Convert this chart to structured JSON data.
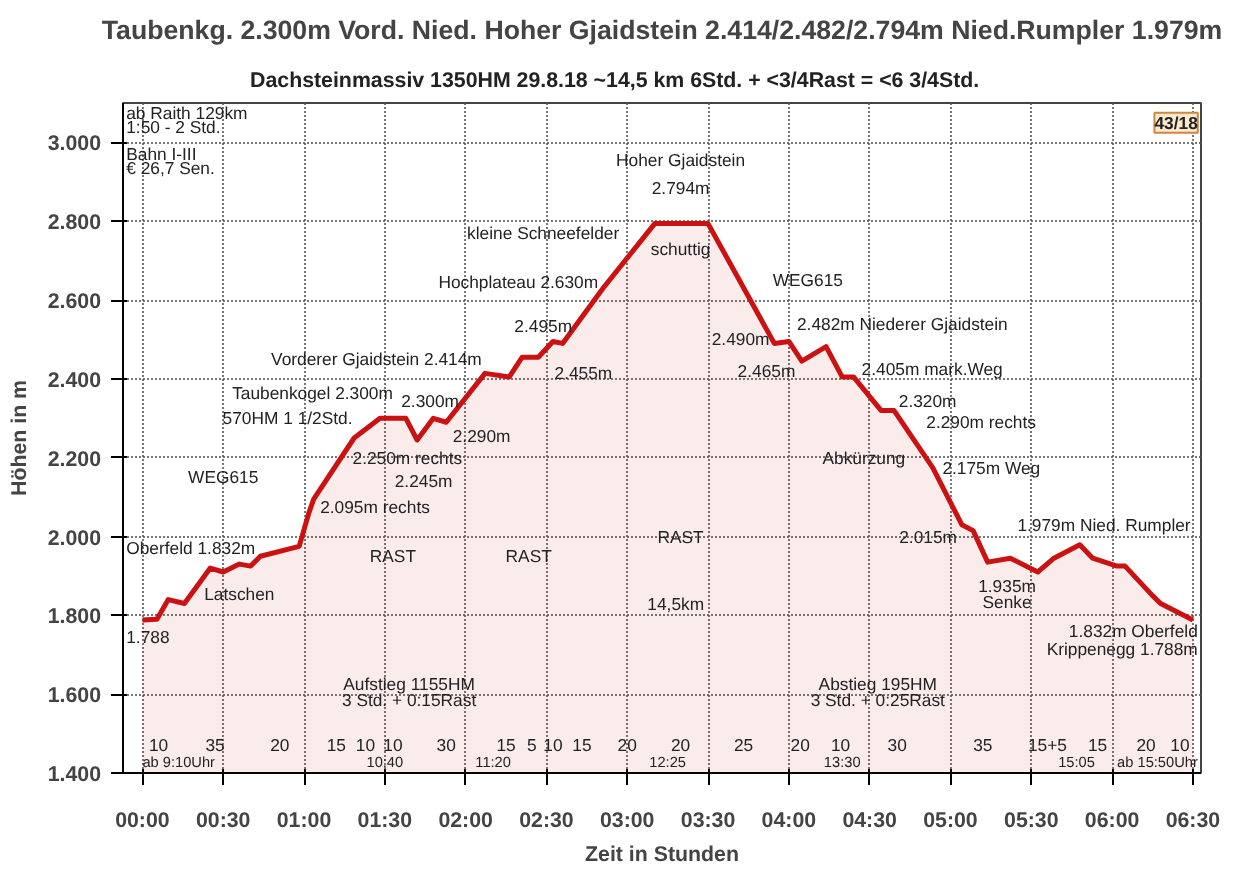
{
  "chart_data": {
    "type": "area",
    "title": "Taubenkg. 2.300m Vord. Nied. Hoher Gjaidstein 2.414/2.482/2.794m Nied.Rumpler 1.979m",
    "subtitle": "Dachsteinmassiv     1350HM     29.8.18     ~14,5 km     6Std. + <3/4Rast = <6 3/4Std.",
    "xlabel": "Zeit in Stunden",
    "ylabel": "Höhen in m",
    "x": [
      0.0,
      0.09,
      0.16,
      0.26,
      0.42,
      0.5,
      0.6,
      0.67,
      0.73,
      0.97,
      1.03,
      1.06,
      1.31,
      1.47,
      1.63,
      1.7,
      1.8,
      1.88,
      2.12,
      2.27,
      2.35,
      2.45,
      2.54,
      2.6,
      2.85,
      3.17,
      3.5,
      3.91,
      4.0,
      4.08,
      4.23,
      4.33,
      4.4,
      4.57,
      4.65,
      4.89,
      5.07,
      5.14,
      5.23,
      5.37,
      5.54,
      5.64,
      5.8,
      5.88,
      6.03,
      6.08,
      6.25,
      6.3,
      6.5
    ],
    "series": [
      {
        "color": "#cc1111",
        "values": [
          1788,
          1790,
          1840,
          1830,
          1920,
          1910,
          1930,
          1925,
          1950,
          1975,
          2060,
          2095,
          2250,
          2300,
          2300,
          2245,
          2300,
          2290,
          2414,
          2405,
          2455,
          2455,
          2495,
          2490,
          2630,
          2794,
          2794,
          2490,
          2495,
          2445,
          2482,
          2405,
          2405,
          2320,
          2320,
          2175,
          2030,
          2015,
          1935,
          1945,
          1910,
          1945,
          1979,
          1945,
          1925,
          1925,
          1850,
          1830,
          1788
        ]
      }
    ],
    "xlim": [
      -0.12,
      6.55
    ],
    "ylim": [
      1400,
      3100
    ],
    "xticks": [
      {
        "value": 0,
        "label": "00:00"
      },
      {
        "value": 0.5,
        "label": "00:30"
      },
      {
        "value": 1,
        "label": "01:00"
      },
      {
        "value": 1.5,
        "label": "01:30"
      },
      {
        "value": 2,
        "label": "02:00"
      },
      {
        "value": 2.5,
        "label": "02:30"
      },
      {
        "value": 3,
        "label": "03:00"
      },
      {
        "value": 3.5,
        "label": "03:30"
      },
      {
        "value": 4,
        "label": "04:00"
      },
      {
        "value": 4.5,
        "label": "04:30"
      },
      {
        "value": 5,
        "label": "05:00"
      },
      {
        "value": 5.5,
        "label": "05:30"
      },
      {
        "value": 6,
        "label": "06:00"
      },
      {
        "value": 6.5,
        "label": "06:30"
      }
    ],
    "yticks": [
      {
        "value": 1400,
        "label": "1.400"
      },
      {
        "value": 1600,
        "label": "1.600"
      },
      {
        "value": 1800,
        "label": "1.800"
      },
      {
        "value": 2000,
        "label": "2.000"
      },
      {
        "value": 2200,
        "label": "2.200"
      },
      {
        "value": 2400,
        "label": "2.400"
      },
      {
        "value": 2600,
        "label": "2.600"
      },
      {
        "value": 2800,
        "label": "2.800"
      },
      {
        "value": 3000,
        "label": "3.000"
      }
    ],
    "grid": true,
    "annotations": [
      "43/18",
      "ab Raith 129km",
      "1:50 - 2 Std.",
      "Bahn I-III",
      "€ 26,7 Sen.",
      "Hoher Gjaidstein",
      "2.794m",
      "kleine Schneefelder",
      "schuttig",
      "Hochplateau 2.630m",
      "WEG615",
      "2.482m Niederer Gjaidstein",
      "2.490m",
      "2.465m",
      "2.405m mark.Weg",
      "2.320m",
      "2.290m rechts",
      "Abkürzung",
      "2.175m Weg",
      "2.015m",
      "Vorderer Gjaidstein 2.414m",
      "2.495m",
      "2.455m",
      "Taubenkogel 2.300m",
      "570HM 1 1/2Std.",
      "2.300m",
      "2.250m rechts",
      "2.245m",
      "2.290m",
      "2.095m rechts",
      "WEG615",
      "Latschen",
      "Oberfeld 1.832m",
      "1.788",
      "RAST",
      "RAST",
      "RAST",
      "14,5km",
      "Aufstieg 1155HM",
      "3 Std. + 0:15Rast",
      "Abstieg 195HM",
      "3 Std. + 0:25Rast",
      "1.979m Nied. Rumpler",
      "1.935m",
      "Senke",
      "1.832m Oberfeld",
      "Krippenegg 1.788m",
      "10",
      "35",
      "20",
      "15",
      "10",
      "10",
      "30",
      "15",
      "5",
      "10",
      "15",
      "20",
      "20",
      "25",
      "20",
      "10",
      "30",
      "35",
      "15+5",
      "15",
      "20",
      "10",
      "ab 9:10Uhr",
      "10:40",
      "11:20",
      "12:25",
      "13:30",
      "15:05",
      "ab 15:50Uhr"
    ]
  }
}
